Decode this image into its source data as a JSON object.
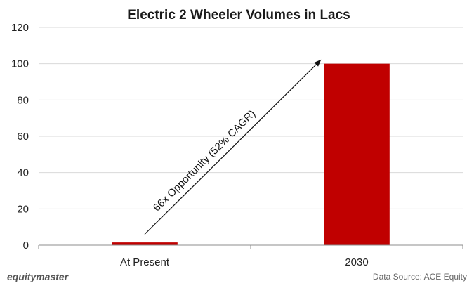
{
  "chart_data": {
    "type": "bar",
    "title": "Electric 2 Wheeler Volumes  in Lacs",
    "categories": [
      "At Present",
      "2030"
    ],
    "values": [
      1.5,
      100
    ],
    "ylim": [
      0,
      120
    ],
    "yticks": [
      0,
      20,
      40,
      60,
      80,
      100,
      120
    ],
    "ytick_labels": [
      "0",
      "20",
      "40",
      "60",
      "80",
      "100",
      "120"
    ],
    "grid": true,
    "bar_color": "#c00000",
    "annotation": {
      "text": "66x Opportunity (52% CAGR)",
      "type": "arrow",
      "from": {
        "category": "At Present",
        "value": 6
      },
      "to": {
        "category": "2030",
        "value": 102
      }
    }
  },
  "footer": {
    "brand": "equitymaster",
    "source": "Data Source: ACE Equity"
  }
}
